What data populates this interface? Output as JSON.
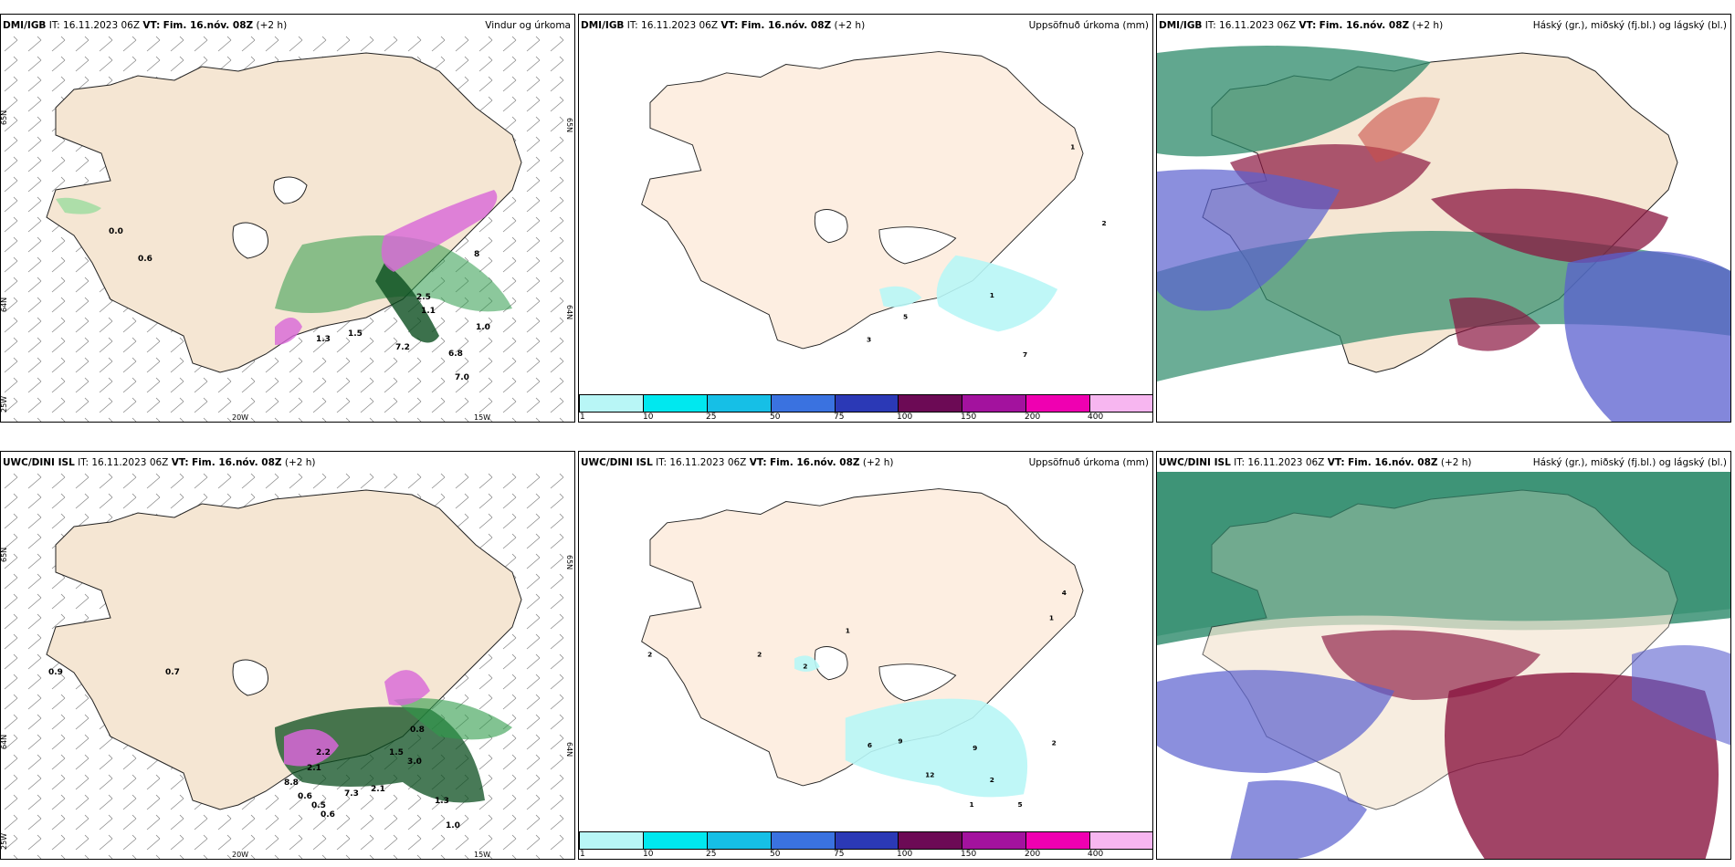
{
  "panels": [
    {
      "source": "DMI/IGB",
      "init": "IT: 16.11.2023 06Z",
      "valid_label": "VT:",
      "valid": "Fim. 16.nóv. 08Z",
      "offset": "(+2 h)",
      "title": "Vindur og úrkoma",
      "labels": [
        "0.0",
        "0.6",
        "8",
        "2.5",
        "1.5",
        "1.0",
        "7.2",
        "6.8",
        "1.1",
        "7.0",
        "1.3"
      ],
      "axis": {
        "lat_left": "65N",
        "lat_left2": "64N",
        "lat_right": "65N",
        "lat_right2": "64N",
        "lon1": "20W",
        "lon2": "15W",
        "corner": "25W"
      }
    },
    {
      "source": "DMI/IGB",
      "init": "IT: 16.11.2023 06Z",
      "valid_label": "VT:",
      "valid": "Fim. 16.nóv. 08Z",
      "offset": "(+2 h)",
      "title": "Uppsöfnuð úrkoma (mm)",
      "labels": [
        "1",
        "2",
        "5",
        "7",
        "3",
        "1"
      ]
    },
    {
      "source": "DMI/IGB",
      "init": "IT: 16.11.2023 06Z",
      "valid_label": "VT:",
      "valid": "Fim. 16.nóv. 08Z",
      "offset": "(+2 h)",
      "title": "Háský (gr.), miðský (fj.bl.) og lágský (bl.)"
    },
    {
      "source": "UWC/DINI ISL",
      "init": "IT: 16.11.2023 06Z",
      "valid_label": "VT:",
      "valid": "Fim. 16.nóv. 08Z",
      "offset": "(+2 h)",
      "title": "",
      "labels": [
        "0.9",
        "0.7",
        "2.2",
        "2.1",
        "8.8",
        "0.6",
        "0.5",
        "0.6",
        "7.3",
        "2.1",
        "3.0",
        "1.5",
        "0.8",
        "1.0",
        "1.3"
      ],
      "axis": {
        "lat_left": "65N",
        "lat_left2": "64N",
        "lat_right": "65N",
        "lat_right2": "64N",
        "lon1": "20W",
        "lon2": "15W",
        "corner": "25W"
      }
    },
    {
      "source": "UWC/DINI ISL",
      "init": "IT: 16.11.2023 06Z",
      "valid_label": "VT:",
      "valid": "Fim. 16.nóv. 08Z",
      "offset": "(+2 h)",
      "title": "Uppsöfnuð úrkoma (mm)",
      "labels": [
        "2",
        "2",
        "2",
        "1",
        "4",
        "1",
        "6",
        "9",
        "12",
        "2",
        "1",
        "5",
        "9",
        "2"
      ]
    },
    {
      "source": "UWC/DINI ISL",
      "init": "IT: 16.11.2023 06Z",
      "valid_label": "VT:",
      "valid": "Fim. 16.nóv. 08Z",
      "offset": "(+2 h)",
      "title": "Háský (gr.), miðský (fj.bl.) og lágský (bl.)"
    }
  ],
  "colorbar": {
    "ticks": [
      "1",
      "10",
      "25",
      "50",
      "75",
      "100",
      "150",
      "200",
      "400"
    ],
    "colors": [
      "#b8f6f6",
      "#00e8ef",
      "#16bfe6",
      "#3a72e0",
      "#2b39b6",
      "#6c0a55",
      "#a3129e",
      "#ef00b1",
      "#f7b6f0"
    ]
  },
  "colors": {
    "land": "#f5e6d3",
    "land_pink": "#fdeee1",
    "wind_green": "#2e9b4a",
    "precip_pink": "#d866d8",
    "cloud_green": "#2c8a6a",
    "cloud_blue": "#5a5fcf",
    "cloud_red": "#8a1540"
  }
}
